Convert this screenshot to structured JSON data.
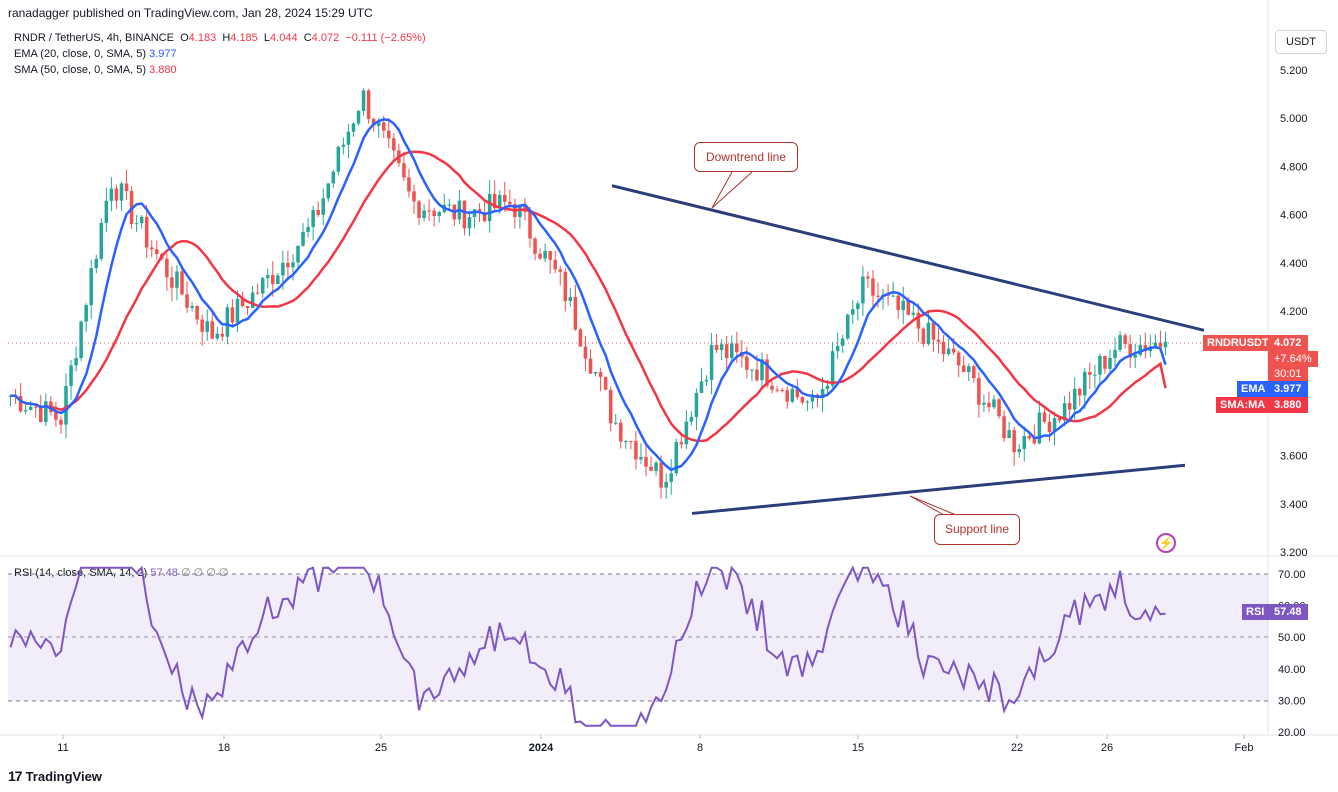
{
  "header": {
    "published": "ranadagger published on TradingView.com, Jan 28, 2024 15:29 UTC"
  },
  "legend": {
    "symbol": "RNDR / TetherUS, 4h, BINANCE",
    "o_label": "O",
    "o": "4.183",
    "h_label": "H",
    "h": "4.185",
    "l_label": "L",
    "l": "4.044",
    "c_label": "C",
    "c": "4.072",
    "change": "−0.111 (−2.65%)",
    "ema_label": "EMA (20, close, 0, SMA, 5)",
    "ema_value": "3.977",
    "sma_label": "SMA (50, close, 0, SMA, 5)",
    "sma_value": "3.880",
    "rsi_label": "RSI (14, close, SMA, 14, 2)",
    "rsi_value": "57.48",
    "rsi_extra": "∅ ∅ ∅ ∅"
  },
  "currency_button": "USDT",
  "badges": {
    "symbol": "RNDRUSDT",
    "price": "4.072",
    "pct": "+7.64%",
    "countdown": "30:01",
    "ema_tag": "EMA",
    "ema_val": "3.977",
    "sma_tag": "SMA:MA",
    "sma_val": "3.880",
    "rsi_tag": "RSI",
    "rsi_val": "57.48"
  },
  "annotations": {
    "downtrend": "Downtrend line",
    "support": "Support line"
  },
  "colors": {
    "up": "#26a69a",
    "down": "#ef5350",
    "ema": "#2962ff",
    "sma": "#f23645",
    "rsi": "#7e57c2",
    "trend": "#2a3f7a",
    "annot": "#b2332d"
  },
  "footer": {
    "brand": "TradingView"
  },
  "chart_data": [
    {
      "type": "candlestick",
      "title": "RNDR / TetherUS, 4h, BINANCE",
      "ylim": [
        3.2,
        5.3
      ],
      "y_ticks": [
        "5.200",
        "5.000",
        "4.800",
        "4.600",
        "4.400",
        "4.200",
        "3.600",
        "3.400",
        "3.200"
      ],
      "x_tick_labels": [
        "11",
        "18",
        "25",
        "2024",
        "8",
        "15",
        "22",
        "26",
        "Feb"
      ],
      "close_series_approx": {
        "dates": [
          "Jan 8 (Dec)",
          "Dec 11",
          "Dec 13",
          "Dec 15",
          "Dec 18",
          "Dec 21",
          "Dec 25",
          "Dec 27",
          "Dec 29",
          "Jan 1",
          "Jan 3",
          "Jan 5",
          "Jan 7",
          "Jan 8",
          "Jan 10",
          "Jan 12",
          "Jan 15",
          "Jan 17",
          "Jan 19",
          "Jan 21",
          "Jan 23",
          "Jan 25",
          "Jan 27",
          "Jan 28"
        ],
        "values": [
          3.85,
          3.75,
          4.75,
          4.4,
          4.1,
          4.3,
          4.55,
          5.1,
          4.65,
          4.6,
          4.65,
          4.3,
          3.75,
          3.5,
          4.05,
          3.95,
          3.8,
          4.3,
          4.15,
          3.95,
          3.65,
          3.8,
          4.05,
          4.072
        ]
      },
      "ema": {
        "name": "EMA",
        "last": 3.977
      },
      "sma": {
        "name": "SMA:MA",
        "last": 3.88
      },
      "downtrend_line": {
        "from": 4.72,
        "to": 4.12
      },
      "support_line": {
        "from": 3.36,
        "to": 3.56
      },
      "last_price": 4.072
    },
    {
      "type": "line",
      "title": "RSI (14, close, SMA, 14, 2)",
      "ylim": [
        20,
        72
      ],
      "y_ticks": [
        "70.00",
        "60.00",
        "50.00",
        "40.00",
        "30.00",
        "20.00"
      ],
      "levels": [
        70,
        50,
        30
      ],
      "last": 57.48
    }
  ]
}
